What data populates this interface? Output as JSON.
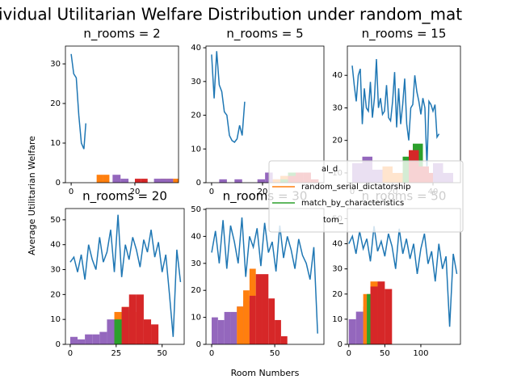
{
  "figure": {
    "title": "ividual Utilitarian Welfare Distribution under random_mat",
    "ylabel": "Average Utilitarian Welfare",
    "xlabel": "Room Numbers",
    "legend": [
      {
        "name": "random_serial_dictatorship",
        "color": "#ff7f0e"
      },
      {
        "name": "match_by_characteristics",
        "color": "#2ca02c"
      }
    ],
    "fragments": [
      "al_d",
      "tom_"
    ]
  },
  "chart_data": [
    {
      "type": "line",
      "title": "n_rooms = 2",
      "xlim": [
        -1.8,
        33.7
      ],
      "xticks": [
        0,
        20
      ],
      "ylim": [
        0,
        34.5
      ],
      "yticks": [
        0,
        10,
        20,
        30
      ],
      "series": [
        {
          "color": "#1f77b4",
          "x": [
            0,
            0.8,
            1.6,
            2.4,
            3.2,
            4,
            4.6
          ],
          "values": [
            32.5,
            27.5,
            26.5,
            17,
            10,
            8.5,
            15
          ]
        }
      ],
      "bars": [
        {
          "color": "#ff7f0e",
          "bins": [
            8,
            10,
            12
          ],
          "counts": [
            2,
            2
          ]
        },
        {
          "color": "#9467bd",
          "bins": [
            13,
            15.5,
            18
          ],
          "counts": [
            2,
            1
          ]
        },
        {
          "color": "#d62728",
          "bins": [
            20,
            22,
            24
          ],
          "counts": [
            1,
            1
          ]
        },
        {
          "color": "#ff7f0e",
          "bins": [
            28,
            30,
            32,
            34
          ],
          "counts": [
            1,
            1,
            1
          ]
        },
        {
          "color": "#9467bd",
          "bins": [
            26,
            28,
            30,
            32
          ],
          "counts": [
            1,
            1,
            1
          ]
        }
      ]
    },
    {
      "type": "line",
      "title": "n_rooms = 5",
      "xlim": [
        -2.2,
        44.1
      ],
      "xticks": [
        0,
        20
      ],
      "ylim": [
        0,
        40.5
      ],
      "yticks": [
        0,
        10,
        20,
        30,
        40
      ],
      "series": [
        {
          "color": "#1f77b4",
          "x": [
            0,
            1,
            2,
            3,
            4,
            5,
            6,
            7,
            8,
            9,
            10,
            11,
            12,
            13
          ],
          "values": [
            38,
            25,
            39,
            29,
            27,
            21,
            20,
            14,
            12.5,
            12,
            13,
            17,
            14,
            24
          ]
        }
      ],
      "bars": [
        {
          "color": "#9467bd",
          "bins": [
            3,
            6,
            9,
            12,
            15,
            18,
            21,
            24,
            27,
            30
          ],
          "counts": [
            1,
            0,
            1,
            0,
            0,
            1,
            3,
            1,
            2
          ]
        },
        {
          "color": "#ff7f0e",
          "bins": [
            24,
            27,
            30
          ],
          "counts": [
            1,
            2
          ]
        },
        {
          "color": "#2ca02c",
          "bins": [
            27,
            30,
            33
          ],
          "counts": [
            1,
            3
          ]
        },
        {
          "color": "#d62728",
          "bins": [
            30,
            33,
            36,
            39,
            42
          ],
          "counts": [
            2,
            3,
            3,
            1
          ]
        }
      ]
    },
    {
      "type": "line",
      "title": "n_rooms = 15",
      "xlim": [
        -2.4,
        53.6
      ],
      "xticks": [
        0,
        20,
        40
      ],
      "ylim": [
        7,
        49
      ],
      "yticks": [
        10,
        20,
        30,
        40
      ],
      "series": [
        {
          "color": "#1f77b4",
          "x": [
            0,
            1,
            2,
            3,
            4,
            5,
            6,
            7,
            8,
            9,
            10,
            11,
            12,
            13,
            14,
            15,
            16,
            17,
            18,
            19,
            20,
            21,
            22,
            23,
            24,
            25,
            26,
            27,
            28,
            29,
            30,
            31,
            32,
            33,
            34,
            35,
            36,
            37,
            38,
            39,
            40,
            41,
            42,
            43
          ],
          "values": [
            43,
            37,
            32,
            40,
            42,
            25,
            36,
            30,
            29,
            38,
            27,
            33,
            45,
            30,
            33,
            28,
            29,
            37,
            27,
            26,
            32,
            41,
            24,
            36,
            25,
            31,
            39,
            25,
            20,
            30,
            31,
            40,
            35,
            32,
            28,
            33,
            30,
            12,
            32,
            31,
            29,
            31,
            21,
            22
          ]
        }
      ],
      "bars": [
        {
          "color": "#9467bd",
          "bins": [
            0,
            5,
            10,
            15
          ],
          "counts": [
            13,
            15,
            11
          ]
        },
        {
          "color": "#ff7f0e",
          "bins": [
            15,
            20,
            25
          ],
          "counts": [
            12,
            10
          ]
        },
        {
          "color": "#2ca02c",
          "bins": [
            25,
            30,
            35
          ],
          "counts": [
            15,
            19
          ]
        },
        {
          "color": "#d62728",
          "bins": [
            28,
            33,
            38,
            43,
            48
          ],
          "counts": [
            17,
            12,
            10,
            9
          ]
        },
        {
          "color": "#9467bd",
          "bins": [
            40,
            45,
            50
          ],
          "counts": [
            13,
            10
          ]
        }
      ]
    },
    {
      "type": "line",
      "title": "n_rooms = 20",
      "xlim": [
        -2.6,
        62
      ],
      "xticks": [
        0,
        25,
        50
      ],
      "ylim": [
        0,
        54.5
      ],
      "yticks": [
        0,
        10,
        20,
        30,
        40,
        50
      ],
      "series": [
        {
          "color": "#1f77b4",
          "x": [
            0,
            2,
            4,
            6,
            8,
            10,
            12,
            14,
            16,
            18,
            20,
            22,
            24,
            26,
            28,
            30,
            32,
            34,
            36,
            38,
            40,
            42,
            44,
            46,
            48,
            50,
            52,
            54,
            56,
            58,
            60
          ],
          "values": [
            33,
            35,
            29,
            36,
            26,
            40,
            34,
            30,
            43,
            33,
            37,
            46,
            29,
            52,
            27,
            40,
            34,
            43,
            38,
            31,
            42,
            37,
            46,
            35,
            41,
            29,
            36,
            20,
            3,
            38,
            25
          ]
        }
      ],
      "bars": [
        {
          "color": "#9467bd",
          "bins": [
            0,
            4,
            8,
            12,
            16,
            20,
            24,
            28
          ],
          "counts": [
            3,
            2,
            4,
            4,
            5,
            10,
            6
          ]
        },
        {
          "color": "#ff7f0e",
          "bins": [
            24,
            28,
            32,
            36
          ],
          "counts": [
            13,
            15,
            13
          ]
        },
        {
          "color": "#2ca02c",
          "bins": [
            24,
            28,
            32
          ],
          "counts": [
            10,
            14
          ]
        },
        {
          "color": "#d62728",
          "bins": [
            28,
            32,
            36,
            40,
            44,
            48
          ],
          "counts": [
            15,
            20,
            20,
            10,
            8
          ]
        }
      ]
    },
    {
      "type": "line",
      "title": "n_rooms = 30",
      "xlim": [
        -4.5,
        89
      ],
      "xticks": [
        0,
        50
      ],
      "ylim": [
        0,
        50.3
      ],
      "yticks": [
        0,
        10,
        20,
        30,
        40,
        50
      ],
      "series": [
        {
          "color": "#1f77b4",
          "x": [
            0,
            3,
            6,
            9,
            12,
            15,
            18,
            21,
            24,
            27,
            30,
            33,
            36,
            39,
            42,
            45,
            48,
            51,
            54,
            57,
            60,
            63,
            66,
            69,
            72,
            75,
            78,
            81,
            84
          ],
          "values": [
            34,
            42,
            30,
            46,
            28,
            44,
            38,
            30,
            47,
            25,
            40,
            36,
            43,
            29,
            45,
            34,
            38,
            27,
            44,
            32,
            40,
            35,
            28,
            39,
            33,
            30,
            24,
            36,
            4
          ]
        }
      ],
      "bars": [
        {
          "color": "#9467bd",
          "bins": [
            0,
            5,
            10,
            15,
            20,
            25,
            30
          ],
          "counts": [
            10,
            9,
            12,
            12,
            14,
            16
          ]
        },
        {
          "color": "#ff7f0e",
          "bins": [
            20,
            25,
            30,
            35
          ],
          "counts": [
            14,
            20,
            28
          ]
        },
        {
          "color": "#d62728",
          "bins": [
            30,
            35,
            40,
            45,
            50,
            55,
            60
          ],
          "counts": [
            18,
            26,
            26,
            17,
            9,
            3
          ]
        }
      ]
    },
    {
      "type": "line",
      "title": "n_rooms = 50",
      "xlim": [
        -2,
        155
      ],
      "xticks": [
        0,
        50,
        100
      ],
      "ylim": [
        0,
        54
      ],
      "yticks": [
        0,
        10,
        20,
        30,
        40,
        50
      ],
      "series": [
        {
          "color": "#1f77b4",
          "x": [
            0,
            5,
            10,
            15,
            20,
            25,
            30,
            35,
            40,
            45,
            50,
            55,
            60,
            65,
            70,
            75,
            80,
            85,
            90,
            95,
            100,
            105,
            110,
            115,
            120,
            125,
            130,
            135,
            140,
            145,
            150
          ],
          "values": [
            40,
            43,
            36,
            45,
            38,
            42,
            33,
            47,
            37,
            41,
            35,
            44,
            39,
            30,
            46,
            36,
            42,
            34,
            40,
            28,
            38,
            44,
            32,
            37,
            25,
            40,
            30,
            35,
            7,
            36,
            28
          ]
        }
      ],
      "bars": [
        {
          "color": "#9467bd",
          "bins": [
            0,
            10,
            20,
            30
          ],
          "counts": [
            10,
            13,
            15
          ]
        },
        {
          "color": "#ff7f0e",
          "bins": [
            20,
            30,
            40
          ],
          "counts": [
            20,
            25
          ]
        },
        {
          "color": "#2ca02c",
          "bins": [
            25,
            35
          ],
          "counts": [
            20
          ]
        },
        {
          "color": "#d62728",
          "bins": [
            30,
            40,
            50,
            60
          ],
          "counts": [
            23,
            25,
            22
          ]
        }
      ]
    }
  ]
}
